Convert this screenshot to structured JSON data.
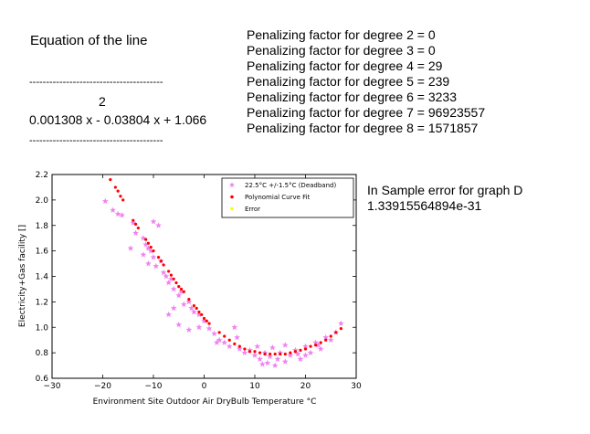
{
  "equation": {
    "title": "Equation of the line",
    "dashes": "----------------------------------------",
    "exponent": "2",
    "polynomial": "0.001308 x - 0.03804 x + 1.066"
  },
  "penalties": [
    "Penalizing factor for degree 2 = 0",
    "Penalizing factor for degree 3 = 0",
    "Penalizing factor for degree 4 = 29",
    "Penalizing factor for degree 5 = 239",
    "Penalizing factor for degree 6 = 3233",
    "Penalizing factor for degree 7 = 96923557",
    "Penalizing factor for degree 8 = 1571857"
  ],
  "in_sample_error": {
    "title": "In Sample error for graph D",
    "value": "1.33915564894e-31"
  },
  "chart_data": {
    "type": "scatter",
    "xlabel": "Environment Site Outdoor Air DryBulb Temperature °C",
    "ylabel": "Electricity+Gas facility []",
    "xlim": [
      -30,
      30
    ],
    "ylim": [
      0.6,
      2.2
    ],
    "x_ticks": [
      "-30",
      "-20",
      "-10",
      "0",
      "10",
      "20",
      "30"
    ],
    "y_ticks": [
      "0.6",
      "0.8",
      "1.0",
      "1.2",
      "1.4",
      "1.6",
      "1.8",
      "2.0",
      "2.2"
    ],
    "legend_position": "top-right",
    "colors": {
      "deadband": "#ee82ee",
      "fit": "#ff0000",
      "error": "#ffff00"
    },
    "series": [
      {
        "name": "22.5°C +/-1.5°C (Deadband)",
        "marker": "star",
        "points": [
          [
            -19.5,
            1.99
          ],
          [
            -18,
            1.92
          ],
          [
            -17,
            1.89
          ],
          [
            -16.2,
            1.88
          ],
          [
            -14,
            1.82
          ],
          [
            -13.5,
            1.74
          ],
          [
            -12,
            1.7
          ],
          [
            -11.5,
            1.65
          ],
          [
            -11,
            1.62
          ],
          [
            -10.5,
            1.6
          ],
          [
            -10,
            1.83
          ],
          [
            -9,
            1.8
          ],
          [
            -12,
            1.57
          ],
          [
            -11,
            1.5
          ],
          [
            -10,
            1.55
          ],
          [
            -9.5,
            1.48
          ],
          [
            -8.5,
            1.52
          ],
          [
            -8,
            1.43
          ],
          [
            -7.5,
            1.4
          ],
          [
            -7,
            1.35
          ],
          [
            -6.5,
            1.38
          ],
          [
            -6,
            1.3
          ],
          [
            -6,
            1.15
          ],
          [
            -5,
            1.25
          ],
          [
            -4.5,
            1.28
          ],
          [
            -3,
            1.2
          ],
          [
            -2.5,
            1.15
          ],
          [
            -2,
            1.12
          ],
          [
            -1,
            1.1
          ],
          [
            0,
            1.05
          ],
          [
            -7,
            1.1
          ],
          [
            -5,
            1.02
          ],
          [
            -3,
            0.98
          ],
          [
            -1,
            1.0
          ],
          [
            1,
            0.99
          ],
          [
            2,
            0.95
          ],
          [
            3,
            0.9
          ],
          [
            4,
            0.88
          ],
          [
            5,
            0.85
          ],
          [
            6,
            1.0
          ],
          [
            6.5,
            0.92
          ],
          [
            7,
            0.83
          ],
          [
            8,
            0.8
          ],
          [
            9,
            0.82
          ],
          [
            10,
            0.78
          ],
          [
            10.5,
            0.85
          ],
          [
            11,
            0.75
          ],
          [
            12,
            0.8
          ],
          [
            12.5,
            0.72
          ],
          [
            13,
            0.77
          ],
          [
            14,
            0.7
          ],
          [
            14.5,
            0.75
          ],
          [
            15,
            0.8
          ],
          [
            16,
            0.73
          ],
          [
            17,
            0.78
          ],
          [
            18,
            0.82
          ],
          [
            19,
            0.75
          ],
          [
            20,
            0.85
          ],
          [
            21,
            0.8
          ],
          [
            22,
            0.88
          ],
          [
            23,
            0.83
          ],
          [
            24,
            0.92
          ],
          [
            25,
            0.9
          ],
          [
            26,
            0.96
          ],
          [
            27,
            1.03
          ],
          [
            13.5,
            0.84
          ],
          [
            16,
            0.86
          ],
          [
            20,
            0.78
          ],
          [
            22.5,
            0.86
          ],
          [
            -14.5,
            1.62
          ],
          [
            -4,
            1.18
          ],
          [
            2.5,
            0.88
          ],
          [
            11.5,
            0.71
          ],
          [
            18.5,
            0.79
          ]
        ]
      },
      {
        "name": "Polynomial Curve Fit",
        "marker": "dot",
        "points": [
          [
            -18.5,
            2.16
          ],
          [
            -17.5,
            2.1
          ],
          [
            -17,
            2.07
          ],
          [
            -16.5,
            2.03
          ],
          [
            -16,
            2.0
          ],
          [
            -14,
            1.84
          ],
          [
            -13.5,
            1.81
          ],
          [
            -13,
            1.78
          ],
          [
            -11.5,
            1.69
          ],
          [
            -11,
            1.66
          ],
          [
            -10.5,
            1.63
          ],
          [
            -10,
            1.6
          ],
          [
            -9,
            1.55
          ],
          [
            -8.5,
            1.52
          ],
          [
            -8,
            1.49
          ],
          [
            -7,
            1.44
          ],
          [
            -6.5,
            1.41
          ],
          [
            -6,
            1.38
          ],
          [
            -5.5,
            1.35
          ],
          [
            -5,
            1.32
          ],
          [
            -4.5,
            1.3
          ],
          [
            -4,
            1.28
          ],
          [
            -3,
            1.22
          ],
          [
            -2,
            1.17
          ],
          [
            -1.5,
            1.15
          ],
          [
            -1,
            1.12
          ],
          [
            -0.5,
            1.1
          ],
          [
            0,
            1.07
          ],
          [
            0.5,
            1.05
          ],
          [
            1,
            1.03
          ],
          [
            3,
            0.96
          ],
          [
            4,
            0.93
          ],
          [
            5,
            0.9
          ],
          [
            6,
            0.87
          ],
          [
            7,
            0.85
          ],
          [
            8,
            0.83
          ],
          [
            9,
            0.81
          ],
          [
            10,
            0.81
          ],
          [
            11,
            0.8
          ],
          [
            12,
            0.79
          ],
          [
            13,
            0.79
          ],
          [
            14,
            0.79
          ],
          [
            15,
            0.79
          ],
          [
            16,
            0.79
          ],
          [
            17,
            0.8
          ],
          [
            18,
            0.81
          ],
          [
            19,
            0.82
          ],
          [
            20,
            0.83
          ],
          [
            21,
            0.85
          ],
          [
            22,
            0.86
          ],
          [
            23,
            0.88
          ],
          [
            24,
            0.9
          ],
          [
            25,
            0.93
          ],
          [
            26,
            0.96
          ],
          [
            27,
            0.99
          ]
        ]
      },
      {
        "name": "Error",
        "marker": "dot",
        "points": []
      }
    ]
  }
}
